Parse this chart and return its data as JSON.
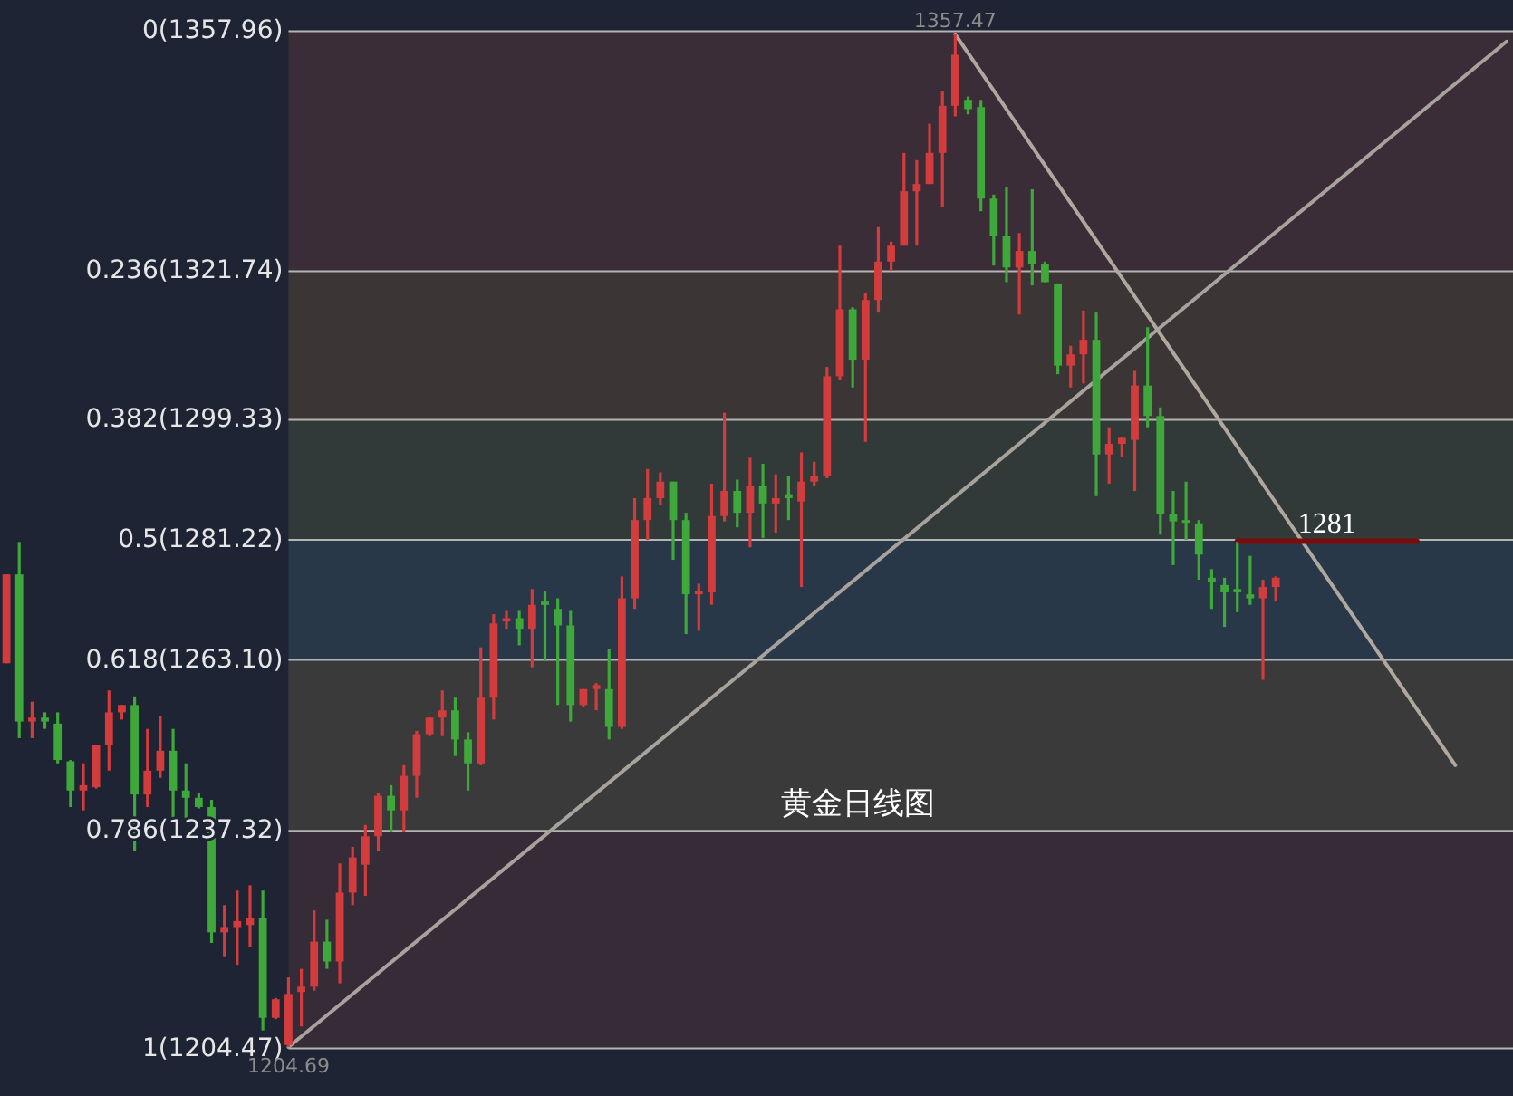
{
  "chart_data": {
    "type": "candlestick",
    "title": "黄金日线图",
    "categories": [
      null,
      null,
      null,
      null,
      null,
      null,
      null,
      null,
      null,
      null,
      null,
      null,
      null,
      null,
      null,
      null,
      null,
      null,
      null,
      null,
      null,
      null,
      null,
      null,
      null,
      null,
      null,
      null,
      null,
      null,
      null,
      null,
      null,
      null,
      null,
      null,
      null,
      null,
      null,
      null,
      null,
      null,
      null,
      null,
      null,
      null,
      null,
      null,
      null,
      null,
      null,
      null,
      null,
      null,
      null,
      null,
      null,
      null,
      null,
      null,
      null,
      null,
      null,
      null,
      null,
      null,
      null,
      null,
      null,
      null,
      null,
      null,
      null,
      null,
      null,
      null,
      null,
      null,
      null,
      null,
      null,
      null,
      null,
      null,
      null,
      null,
      null,
      null,
      null,
      null,
      null,
      null,
      null,
      null,
      null,
      null,
      null,
      null,
      null,
      null,
      null,
      null,
      null,
      null,
      null,
      null,
      null,
      null,
      null,
      null,
      null,
      null,
      null,
      null,
      null,
      null,
      null,
      null
    ],
    "ohlc": [
      [
        1262.6,
        1276.0,
        1262.6,
        1276.0
      ],
      [
        1276.0,
        1280.9,
        1251.3,
        1253.8
      ],
      [
        1253.8,
        1256.8,
        1251.3,
        1254.4
      ],
      [
        1254.4,
        1255.2,
        1252.7,
        1253.8
      ],
      [
        1253.5,
        1255.2,
        1247.5,
        1248.0
      ],
      [
        1247.8,
        1248.0,
        1240.9,
        1243.4
      ],
      [
        1243.4,
        1247.5,
        1240.4,
        1244.2
      ],
      [
        1243.9,
        1250.2,
        1243.7,
        1250.2
      ],
      [
        1250.2,
        1258.5,
        1246.4,
        1255.2
      ],
      [
        1255.2,
        1256.3,
        1254.1,
        1256.3
      ],
      [
        1256.3,
        1257.6,
        1234.3,
        1242.8
      ],
      [
        1242.8,
        1252.7,
        1240.9,
        1246.4
      ],
      [
        1246.4,
        1254.6,
        1245.3,
        1249.4
      ],
      [
        1249.4,
        1252.7,
        1239.3,
        1243.4
      ],
      [
        1243.4,
        1247.5,
        1239.0,
        1242.3
      ],
      [
        1242.3,
        1243.1,
        1240.7,
        1240.9
      ],
      [
        1240.9,
        1242.0,
        1220.4,
        1222.0
      ],
      [
        1222.0,
        1226.1,
        1218.4,
        1222.8
      ],
      [
        1222.8,
        1228.3,
        1217.1,
        1223.7
      ],
      [
        1223.1,
        1229.1,
        1219.8,
        1224.2
      ],
      [
        1224.2,
        1228.3,
        1207.2,
        1209.1
      ],
      [
        1209.1,
        1212.1,
        1208.9,
        1211.9
      ],
      [
        1205.0,
        1215.2,
        1204.69,
        1212.7
      ],
      [
        1213.0,
        1216.5,
        1207.8,
        1213.8
      ],
      [
        1213.8,
        1225.3,
        1213.2,
        1220.6
      ],
      [
        1220.6,
        1223.9,
        1216.5,
        1217.6
      ],
      [
        1217.6,
        1232.4,
        1214.3,
        1228.0
      ],
      [
        1228.0,
        1234.9,
        1226.1,
        1233.3
      ],
      [
        1232.2,
        1238.2,
        1227.5,
        1236.5
      ],
      [
        1236.5,
        1243.1,
        1234.3,
        1242.6
      ],
      [
        1242.6,
        1244.2,
        1237.1,
        1240.4
      ],
      [
        1240.4,
        1247.2,
        1237.1,
        1245.6
      ],
      [
        1245.6,
        1252.4,
        1242.3,
        1251.9
      ],
      [
        1251.9,
        1254.4,
        1251.6,
        1254.4
      ],
      [
        1254.4,
        1258.5,
        1251.6,
        1255.5
      ],
      [
        1255.5,
        1257.4,
        1248.6,
        1251.1
      ],
      [
        1251.1,
        1252.2,
        1243.4,
        1247.5
      ],
      [
        1247.5,
        1265.0,
        1247.2,
        1257.4
      ],
      [
        1257.4,
        1270.0,
        1254.1,
        1268.6
      ],
      [
        1268.9,
        1270.5,
        1267.8,
        1269.4
      ],
      [
        1269.4,
        1270.5,
        1265.3,
        1267.8
      ],
      [
        1267.8,
        1273.8,
        1262.0,
        1271.4
      ],
      [
        1271.9,
        1273.5,
        1262.9,
        1271.4
      ],
      [
        1270.8,
        1272.4,
        1256.3,
        1268.3
      ],
      [
        1268.3,
        1270.5,
        1253.8,
        1256.3
      ],
      [
        1256.3,
        1258.7,
        1256.0,
        1258.7
      ],
      [
        1258.7,
        1259.6,
        1255.5,
        1259.3
      ],
      [
        1258.7,
        1264.8,
        1251.1,
        1253.0
      ],
      [
        1253.0,
        1275.7,
        1252.7,
        1272.4
      ],
      [
        1272.4,
        1287.5,
        1270.8,
        1284.2
      ],
      [
        1284.2,
        1291.9,
        1281.2,
        1287.5
      ],
      [
        1287.5,
        1291.4,
        1286.4,
        1290.0
      ],
      [
        1290.0,
        1290.0,
        1278.2,
        1284.2
      ],
      [
        1284.2,
        1285.3,
        1267.0,
        1273.0
      ],
      [
        1273.0,
        1274.6,
        1267.5,
        1273.5
      ],
      [
        1273.3,
        1289.7,
        1271.4,
        1284.8
      ],
      [
        1284.8,
        1300.4,
        1284.0,
        1288.6
      ],
      [
        1288.6,
        1290.3,
        1283.1,
        1285.3
      ],
      [
        1285.3,
        1293.6,
        1280.1,
        1289.4
      ],
      [
        1289.4,
        1292.7,
        1281.5,
        1286.7
      ],
      [
        1286.7,
        1291.1,
        1282.3,
        1287.5
      ],
      [
        1288.1,
        1290.8,
        1284.2,
        1287.5
      ],
      [
        1287.0,
        1294.4,
        1274.1,
        1290.0
      ],
      [
        1290.0,
        1293.0,
        1289.4,
        1290.8
      ],
      [
        1290.8,
        1307.3,
        1290.5,
        1305.9
      ],
      [
        1305.9,
        1325.6,
        1305.3,
        1316.0
      ],
      [
        1316.0,
        1316.3,
        1304.2,
        1308.4
      ],
      [
        1308.4,
        1318.5,
        1296.0,
        1317.4
      ],
      [
        1317.4,
        1328.4,
        1315.5,
        1323.2
      ],
      [
        1323.2,
        1326.2,
        1321.8,
        1325.6
      ],
      [
        1325.6,
        1339.6,
        1325.6,
        1333.8
      ],
      [
        1333.8,
        1338.5,
        1325.6,
        1334.9
      ],
      [
        1334.9,
        1344.0,
        1334.9,
        1339.6
      ],
      [
        1339.6,
        1348.9,
        1331.4,
        1346.7
      ],
      [
        1346.7,
        1357.47,
        1345.1,
        1354.4
      ],
      [
        1347.6,
        1348.1,
        1345.4,
        1346.2
      ],
      [
        1346.5,
        1347.6,
        1330.8,
        1332.7
      ],
      [
        1332.7,
        1333.3,
        1322.6,
        1327.0
      ],
      [
        1327.0,
        1334.4,
        1320.1,
        1322.3
      ],
      [
        1322.3,
        1327.5,
        1315.2,
        1324.8
      ],
      [
        1324.8,
        1334.1,
        1319.6,
        1322.9
      ],
      [
        1322.9,
        1323.2,
        1320.1,
        1320.1
      ],
      [
        1319.9,
        1319.9,
        1306.2,
        1307.5
      ],
      [
        1307.5,
        1310.5,
        1304.2,
        1309.2
      ],
      [
        1309.2,
        1315.8,
        1304.8,
        1311.4
      ],
      [
        1311.4,
        1315.5,
        1287.8,
        1294.1
      ],
      [
        1294.1,
        1298.2,
        1289.7,
        1295.7
      ],
      [
        1295.7,
        1296.8,
        1293.8,
        1296.6
      ],
      [
        1296.3,
        1306.7,
        1288.6,
        1304.5
      ],
      [
        1304.5,
        1313.3,
        1298.2,
        1299.9
      ],
      [
        1299.9,
        1301.2,
        1282.0,
        1285.1
      ],
      [
        1285.1,
        1288.6,
        1277.4,
        1284.0
      ],
      [
        1284.2,
        1290.0,
        1281.2,
        1284.0
      ],
      [
        1283.7,
        1284.2,
        1275.2,
        1279.0
      ],
      [
        1275.5,
        1276.8,
        1270.8,
        1274.9
      ],
      [
        1274.4,
        1275.5,
        1268.1,
        1273.3
      ],
      [
        1273.8,
        1280.9,
        1270.3,
        1273.3
      ],
      [
        1273.0,
        1278.8,
        1271.4,
        1272.4
      ],
      [
        1272.4,
        1275.2,
        1260.1,
        1274.1
      ],
      [
        1274.1,
        1275.7,
        1271.9,
        1275.5
      ],
      null,
      null,
      null,
      null,
      null,
      null,
      null,
      null,
      null,
      null,
      null,
      null,
      null,
      null,
      null,
      null,
      null,
      null
    ],
    "colors": [
      "#d23c3c",
      "#3ea83a",
      "#d23c3c",
      "#3ea83a",
      "#3ea83a",
      "#3ea83a",
      "#d23c3c",
      "#d23c3c",
      "#d23c3c",
      "#d23c3c",
      "#3ea83a",
      "#d23c3c",
      "#d23c3c",
      "#3ea83a",
      "#3ea83a",
      "#3ea83a",
      "#3ea83a",
      "#d23c3c",
      "#d23c3c",
      "#d23c3c",
      "#3ea83a",
      "#d23c3c",
      "#d23c3c",
      "#d23c3c",
      "#d23c3c",
      "#3ea83a",
      "#d23c3c",
      "#d23c3c",
      "#d23c3c",
      "#d23c3c",
      "#3ea83a",
      "#d23c3c",
      "#d23c3c",
      "#d23c3c",
      "#d23c3c",
      "#3ea83a",
      "#3ea83a",
      "#d23c3c",
      "#d23c3c",
      "#d23c3c",
      "#3ea83a",
      "#d23c3c",
      "#3ea83a",
      "#3ea83a",
      "#3ea83a",
      "#d23c3c",
      "#d23c3c",
      "#3ea83a",
      "#d23c3c",
      "#d23c3c",
      "#d23c3c",
      "#d23c3c",
      "#3ea83a",
      "#3ea83a",
      "#d23c3c",
      "#d23c3c",
      "#d23c3c",
      "#3ea83a",
      "#d23c3c",
      "#3ea83a",
      "#d23c3c",
      "#3ea83a",
      "#d23c3c",
      "#d23c3c",
      "#d23c3c",
      "#d23c3c",
      "#3ea83a",
      "#d23c3c",
      "#d23c3c",
      "#d23c3c",
      "#d23c3c",
      "#d23c3c",
      "#d23c3c",
      "#d23c3c",
      "#d23c3c",
      "#3ea83a",
      "#3ea83a",
      "#3ea83a",
      "#3ea83a",
      "#d23c3c",
      "#3ea83a",
      "#3ea83a",
      "#3ea83a",
      "#d23c3c",
      "#d23c3c",
      "#3ea83a",
      "#d23c3c",
      "#d23c3c",
      "#d23c3c",
      "#3ea83a",
      "#3ea83a",
      "#3ea83a",
      "#3ea83a",
      "#3ea83a",
      "#3ea83a",
      "#3ea83a",
      "#3ea83a",
      "#3ea83a",
      "#d23c3c",
      "#d23c3c",
      null,
      null,
      null,
      null,
      null,
      null,
      null,
      null,
      null,
      null,
      null,
      null,
      null,
      null,
      null,
      null,
      null,
      null
    ],
    "ref_lines": [
      {
        "axis": "y",
        "value": 1357.96,
        "label": "0(1357.96)",
        "color": "#b4b4b4"
      },
      {
        "axis": "y",
        "value": 1321.74,
        "label": "0.236(1321.74)",
        "color": "#b4b4b4"
      },
      {
        "axis": "y",
        "value": 1299.33,
        "label": "0.382(1299.33)",
        "color": "#b4b4b4"
      },
      {
        "axis": "y",
        "value": 1281.22,
        "label": "0.5(1281.22)",
        "color": "#b4b4b4"
      },
      {
        "axis": "y",
        "value": 1263.1,
        "label": "0.618(1263.10)",
        "color": "#b4b4b4"
      },
      {
        "axis": "y",
        "value": 1237.32,
        "label": "0.786(1237.32)",
        "color": "#b4b4b4"
      },
      {
        "axis": "y",
        "value": 1204.47,
        "label": "1(1204.47)",
        "color": "#b4b4b4"
      }
    ],
    "bands": [
      {
        "axis": "y",
        "from": 1321.74,
        "to": 1357.96,
        "color": "#3a2d37"
      },
      {
        "axis": "y",
        "from": 1299.33,
        "to": 1321.74,
        "color": "#3b3536"
      },
      {
        "axis": "y",
        "from": 1281.22,
        "to": 1299.33,
        "color": "#323a39"
      },
      {
        "axis": "y",
        "from": 1263.1,
        "to": 1281.22,
        "color": "#283849"
      },
      {
        "axis": "y",
        "from": 1237.32,
        "to": 1263.1,
        "color": "#3a3a3b"
      },
      {
        "axis": "y",
        "from": 1204.47,
        "to": 1237.32,
        "color": "#352c37"
      }
    ],
    "series": [
      {
        "type": "line",
        "color": "#a8a29c",
        "values": [
          null,
          null,
          null,
          null,
          null,
          null,
          null,
          null,
          null,
          null,
          null,
          null,
          null,
          null,
          null,
          null,
          null,
          null,
          null,
          null,
          null,
          null,
          1204.7,
          null,
          null,
          null,
          null,
          null,
          null,
          null,
          null,
          null,
          null,
          null,
          null,
          null,
          null,
          null,
          null,
          null,
          null,
          null,
          null,
          null,
          null,
          null,
          null,
          null,
          null,
          null,
          null,
          null,
          null,
          null,
          null,
          null,
          null,
          null,
          null,
          null,
          null,
          null,
          null,
          null,
          null,
          null,
          null,
          null,
          null,
          null,
          null,
          null,
          null,
          null,
          null,
          null,
          null,
          null,
          null,
          null,
          null,
          null,
          null,
          null,
          null,
          null,
          null,
          null,
          null,
          null,
          null,
          null,
          null,
          null,
          null,
          null,
          null,
          null,
          null,
          null,
          null,
          null,
          null,
          null,
          null,
          null,
          null,
          null,
          null,
          null,
          null,
          null,
          null,
          null,
          null,
          null,
          null,
          1356.4
        ]
      },
      {
        "type": "line",
        "color": "#b0a89f",
        "values": [
          null,
          null,
          null,
          null,
          null,
          null,
          null,
          null,
          null,
          null,
          null,
          null,
          null,
          null,
          null,
          null,
          null,
          null,
          null,
          null,
          null,
          null,
          null,
          null,
          null,
          null,
          null,
          null,
          null,
          null,
          null,
          null,
          null,
          null,
          null,
          null,
          null,
          null,
          null,
          null,
          null,
          null,
          null,
          null,
          null,
          null,
          null,
          null,
          null,
          null,
          null,
          null,
          null,
          null,
          null,
          null,
          null,
          null,
          null,
          null,
          null,
          null,
          null,
          null,
          null,
          null,
          null,
          null,
          null,
          null,
          null,
          null,
          null,
          null,
          1357.5,
          null,
          null,
          null,
          null,
          null,
          null,
          null,
          null,
          null,
          null,
          null,
          null,
          null,
          null,
          null,
          null,
          null,
          null,
          null,
          null,
          null,
          null,
          null,
          null,
          null,
          null,
          null,
          null,
          null,
          null,
          null,
          null,
          null,
          null,
          null,
          null,
          null,
          null,
          1247.2,
          null,
          null,
          null,
          null
        ]
      },
      {
        "type": "line",
        "name": "1281",
        "color": "#7b0c0c",
        "values": [
          null,
          null,
          null,
          null,
          null,
          null,
          null,
          null,
          null,
          null,
          null,
          null,
          null,
          null,
          null,
          null,
          null,
          null,
          null,
          null,
          null,
          null,
          null,
          null,
          null,
          null,
          null,
          null,
          null,
          null,
          null,
          null,
          null,
          null,
          null,
          null,
          null,
          null,
          null,
          null,
          null,
          null,
          null,
          null,
          null,
          null,
          null,
          null,
          null,
          null,
          null,
          null,
          null,
          null,
          null,
          null,
          null,
          null,
          null,
          null,
          null,
          null,
          null,
          null,
          null,
          null,
          null,
          null,
          null,
          null,
          null,
          null,
          null,
          null,
          null,
          null,
          null,
          null,
          null,
          null,
          null,
          null,
          null,
          null,
          null,
          null,
          null,
          null,
          null,
          null,
          null,
          null,
          null,
          null,
          null,
          null,
          1281,
          null,
          null,
          null,
          null,
          null,
          null,
          null,
          null,
          null,
          null,
          null,
          null,
          null,
          1281,
          null,
          null,
          null,
          null,
          null,
          null,
          null
        ]
      }
    ],
    "annotations": [
      {
        "text": "1357.47",
        "y": 1357.47
      },
      {
        "text": "1204.69",
        "y": 1204.69
      }
    ]
  }
}
